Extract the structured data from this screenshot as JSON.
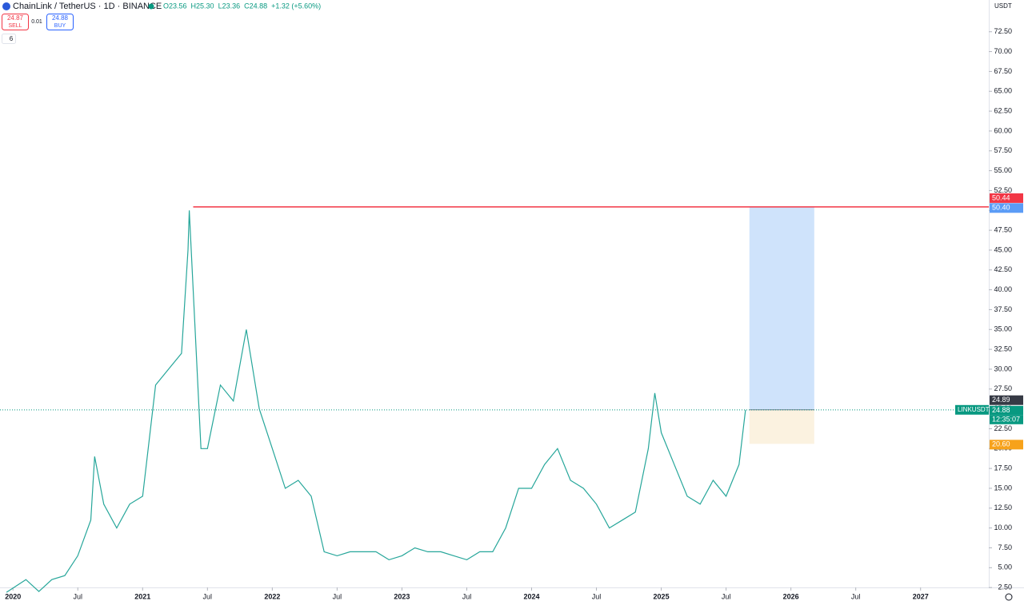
{
  "header": {
    "symbol": "ChainLink / TetherUS · 1D · BINANCE",
    "ohlc": [
      "O23.56",
      "H25.30",
      "L23.36",
      "C24.88",
      "+1.32 (+5.60%)"
    ],
    "sell_price": "24.87",
    "sell_label": "SELL",
    "spread": "0.01",
    "buy_price": "24.88",
    "buy_label": "BUY",
    "indicators": "6",
    "currency": "USDT"
  },
  "chart_data": {
    "type": "line",
    "x": [
      2019.95,
      2020.1,
      2020.2,
      2020.3,
      2020.4,
      2020.5,
      2020.6,
      2020.63,
      2020.7,
      2020.8,
      2020.9,
      2021.0,
      2021.1,
      2021.2,
      2021.3,
      2021.35,
      2021.36,
      2021.45,
      2021.5,
      2021.6,
      2021.7,
      2021.8,
      2021.9,
      2022.0,
      2022.1,
      2022.2,
      2022.3,
      2022.4,
      2022.5,
      2022.6,
      2022.7,
      2022.8,
      2022.9,
      2023.0,
      2023.1,
      2023.2,
      2023.3,
      2023.4,
      2023.5,
      2023.6,
      2023.7,
      2023.8,
      2023.9,
      2024.0,
      2024.1,
      2024.2,
      2024.3,
      2024.4,
      2024.5,
      2024.6,
      2024.7,
      2024.8,
      2024.9,
      2024.95,
      2025.0,
      2025.1,
      2025.2,
      2025.3,
      2025.4,
      2025.5,
      2025.6,
      2025.65
    ],
    "series": [
      {
        "name": "LINKUSDT",
        "color": "#26a69a",
        "values": [
          1.9,
          3.5,
          2.0,
          3.5,
          4.0,
          6.5,
          11,
          19,
          13,
          10,
          13,
          14,
          28,
          30,
          32,
          45,
          50,
          20,
          20,
          28,
          26,
          35,
          25,
          20,
          15,
          16,
          14,
          7,
          6.5,
          7,
          7,
          7,
          6,
          6.5,
          7.5,
          7,
          7,
          6.5,
          6,
          7,
          7,
          10,
          15,
          15,
          18,
          20,
          16,
          15,
          13,
          10,
          11,
          12,
          20,
          27,
          22,
          18,
          14,
          13,
          16,
          14,
          18,
          24.88
        ]
      }
    ],
    "xlim": [
      2019.9,
      2027.52
    ],
    "xticks": [
      2020,
      {
        "value": 2020.5,
        "label": "Jul"
      },
      2021,
      {
        "value": 2021.5,
        "label": "Jul"
      },
      2022,
      {
        "value": 2022.5,
        "label": "Jul"
      },
      2023,
      {
        "value": 2023.5,
        "label": "Jul"
      },
      2024,
      {
        "value": 2024.5,
        "label": "Jul"
      },
      2025,
      {
        "value": 2025.5,
        "label": "Jul"
      },
      2026,
      {
        "value": 2026.5,
        "label": "Jul"
      },
      2027
    ],
    "ylim": [
      0.3,
      76.5
    ],
    "yticks": [
      {
        "value": 2.5,
        "label": "2.50"
      },
      {
        "value": 5,
        "label": "5.00"
      },
      {
        "value": 7.5,
        "label": "7.50"
      },
      {
        "value": 10,
        "label": "10.00"
      },
      {
        "value": 12.5,
        "label": "12.50"
      },
      {
        "value": 15,
        "label": "15.00"
      },
      {
        "value": 17.5,
        "label": "17.50"
      },
      {
        "value": 20,
        "label": "20.00"
      },
      {
        "value": 22.5,
        "label": "22.50"
      },
      {
        "value": 25,
        "label": "25.00"
      },
      {
        "value": 27.5,
        "label": "27.50"
      },
      {
        "value": 30,
        "label": "30.00"
      },
      {
        "value": 32.5,
        "label": "32.50"
      },
      {
        "value": 35,
        "label": "35.00"
      },
      {
        "value": 37.5,
        "label": "37.50"
      },
      {
        "value": 40,
        "label": "40.00"
      },
      {
        "value": 42.5,
        "label": "42.50"
      },
      {
        "value": 45,
        "label": "45.00"
      },
      {
        "value": 47.5,
        "label": "47.50"
      },
      {
        "value": 50,
        "label": "50.00"
      },
      {
        "value": 52.5,
        "label": "52.50"
      },
      {
        "value": 55,
        "label": "55.00"
      },
      {
        "value": 57.5,
        "label": "57.50"
      },
      {
        "value": 60,
        "label": "60.00"
      },
      {
        "value": 62.5,
        "label": "62.50"
      },
      {
        "value": 65,
        "label": "65.00"
      },
      {
        "value": 67.5,
        "label": "67.50"
      },
      {
        "value": 70,
        "label": "70.00"
      },
      {
        "value": 72.5,
        "label": "72.50"
      }
    ],
    "horizontal_line": {
      "value": 50.44,
      "x_start": 2021.39,
      "color": "#f23645"
    },
    "position": {
      "x": [
        2025.68,
        2026.18
      ],
      "entry": 24.89,
      "target": {
        "value": 50.4,
        "label": "50.40"
      },
      "stop": {
        "value": 20.6,
        "label": "20.60"
      }
    },
    "last_price": {
      "value": 24.88,
      "symbol": "LINKUSDT",
      "countdown": "12:35:07",
      "color": "#089981"
    }
  }
}
